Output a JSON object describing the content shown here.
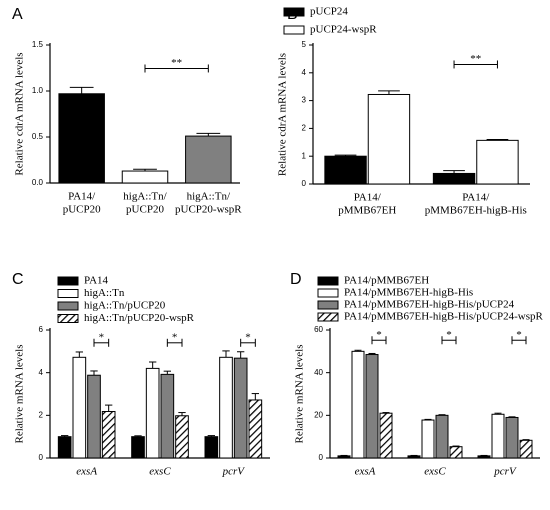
{
  "chart_data": [
    {
      "type": "bar",
      "label": "A",
      "ylabel": "Relative cdrA mRNA levels",
      "categories": [
        [
          "PA14/",
          "pUCP20"
        ],
        [
          "higA::Tn/",
          "pUCP20"
        ],
        [
          "higA::Tn/",
          "pUCP20-wspR"
        ]
      ],
      "values": [
        0.97,
        0.13,
        0.51
      ],
      "errors": [
        0.07,
        0.02,
        0.03
      ],
      "colors": [
        "#000000",
        "#ffffff",
        "#808080"
      ],
      "ylim": [
        0,
        1.5
      ],
      "yticks": [
        {
          "value": 0,
          "label": "0.0"
        },
        {
          "value": 0.5,
          "label": "0.5"
        },
        {
          "value": 1,
          "label": "1.0"
        },
        {
          "value": 1.5,
          "label": "1.5"
        }
      ],
      "annotations": [
        "**"
      ]
    },
    {
      "type": "bar",
      "label": "B",
      "ylabel": "Relative cdrA mRNA levels",
      "categories": [
        [
          "PA14/",
          "pMMB67EH"
        ],
        [
          "PA14/",
          "pMMB67EH-higB-His"
        ]
      ],
      "series": [
        {
          "name": "pUCP24",
          "color": "#000000",
          "values": [
            1.0,
            0.38
          ],
          "errors": [
            0.04,
            0.1
          ]
        },
        {
          "name": "pUCP24-wspR",
          "color": "#ffffff",
          "values": [
            3.22,
            1.57
          ],
          "errors": [
            0.13,
            0.03
          ]
        }
      ],
      "ylim": [
        0,
        5
      ],
      "yticks": [
        0,
        1,
        2,
        3,
        4,
        5
      ],
      "annotations": [
        "**"
      ]
    },
    {
      "type": "bar",
      "label": "C",
      "ylabel": "Relative  mRNA levels",
      "categories": [
        "exsA",
        "exsC",
        "pcrV"
      ],
      "series": [
        {
          "name": "PA14",
          "color": "#000000",
          "values": [
            1.0,
            1.0,
            1.0
          ],
          "errors": [
            0.05,
            0.04,
            0.05
          ]
        },
        {
          "name": "higA::Tn",
          "color": "#ffffff",
          "values": [
            4.72,
            4.2,
            4.72
          ],
          "errors": [
            0.25,
            0.3,
            0.3
          ]
        },
        {
          "name": "higA::Tn/pUCP20",
          "color": "#808080",
          "values": [
            3.88,
            3.92,
            4.68
          ],
          "errors": [
            0.2,
            0.15,
            0.3
          ]
        },
        {
          "name": "higA::Tn/pUCP20-wspR",
          "color": "#ffffff",
          "pattern": "hatch",
          "values": [
            2.18,
            1.98,
            2.72
          ],
          "errors": [
            0.3,
            0.15,
            0.3
          ]
        }
      ],
      "ylim": [
        0,
        6
      ],
      "yticks": [
        0,
        2,
        4,
        6
      ],
      "annotations": [
        "*",
        "*",
        "*"
      ]
    },
    {
      "type": "bar",
      "label": "D",
      "ylabel": "Relative mRNA levels",
      "categories": [
        "exsA",
        "exsC",
        "pcrV"
      ],
      "series": [
        {
          "name": "PA14/pMMB67EH",
          "color": "#000000",
          "values": [
            1.0,
            1.0,
            1.0
          ],
          "errors": [
            0.2,
            0.2,
            0.2
          ]
        },
        {
          "name": "PA14/pMMB67EH-higB-His",
          "color": "#ffffff",
          "values": [
            50,
            17.8,
            20.5
          ],
          "errors": [
            0.5,
            0.3,
            0.5
          ]
        },
        {
          "name": "PA14/pMMB67EH-higB-His/pUCP24",
          "color": "#808080",
          "values": [
            48.5,
            20,
            19
          ],
          "errors": [
            0.5,
            0.3,
            0.3
          ]
        },
        {
          "name": "PA14/pMMB67EH-higB-His/pUCP24-wspR",
          "color": "#ffffff",
          "pattern": "hatch",
          "values": [
            21,
            5.3,
            8.3
          ],
          "errors": [
            0.3,
            0.3,
            0.3
          ]
        }
      ],
      "ylim": [
        0,
        60
      ],
      "yticks": [
        0,
        20,
        40,
        60
      ],
      "annotations": [
        "*",
        "*",
        "*"
      ]
    }
  ]
}
